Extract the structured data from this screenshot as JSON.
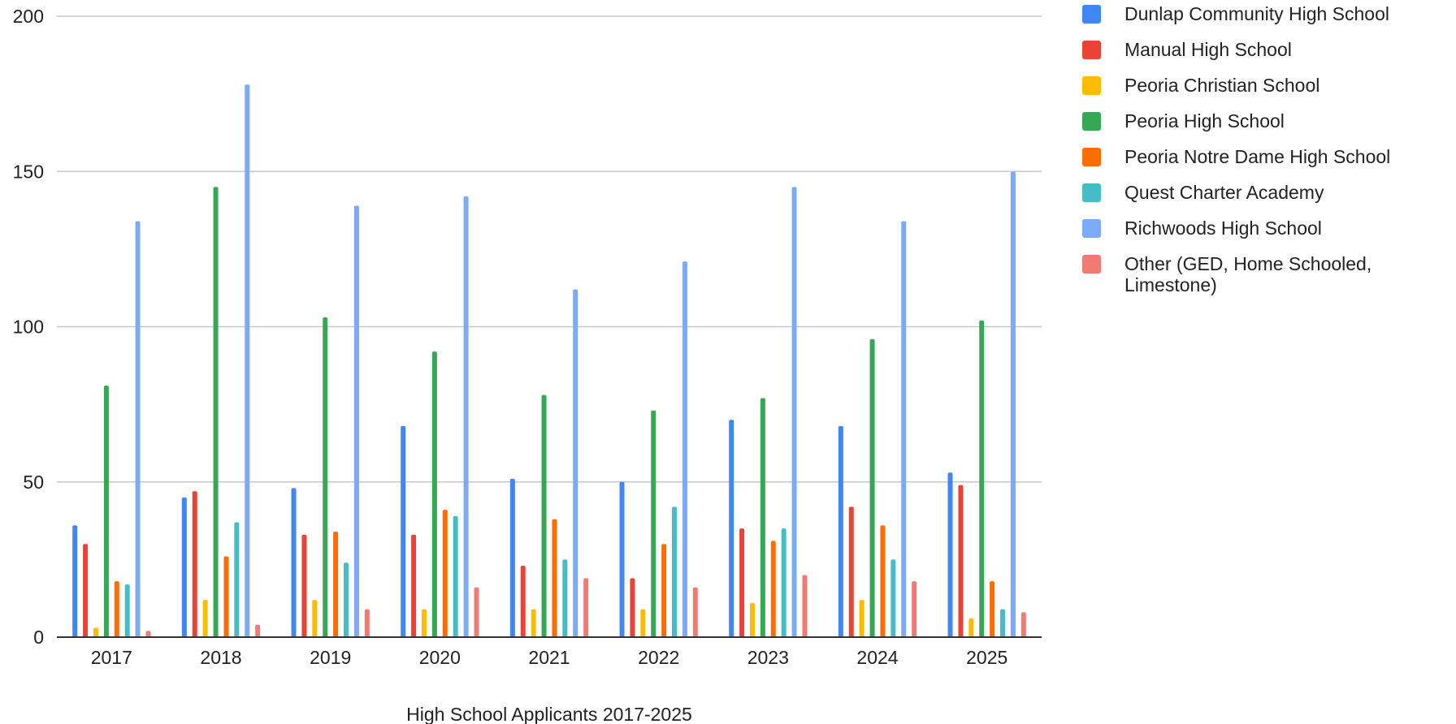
{
  "chart_data": {
    "type": "bar",
    "title": "",
    "xlabel": "High School Applicants 2017-2025",
    "ylabel": "",
    "ylim": [
      0,
      200
    ],
    "yticks": [
      0,
      50,
      100,
      150,
      200
    ],
    "grid": true,
    "legend_position": "right",
    "categories": [
      "2017",
      "2018",
      "2019",
      "2020",
      "2021",
      "2022",
      "2023",
      "2024",
      "2025"
    ],
    "series": [
      {
        "name": "Dunlap Community High School",
        "color": "#4285f4",
        "values": [
          36,
          45,
          48,
          68,
          51,
          50,
          70,
          68,
          53
        ]
      },
      {
        "name": "Manual High School",
        "color": "#ea4335",
        "values": [
          30,
          47,
          33,
          33,
          23,
          19,
          35,
          42,
          49
        ]
      },
      {
        "name": "Peoria Christian School",
        "color": "#fbbc04",
        "values": [
          3,
          12,
          12,
          9,
          9,
          9,
          11,
          12,
          6
        ]
      },
      {
        "name": "Peoria High School",
        "color": "#34a853",
        "values": [
          81,
          145,
          103,
          92,
          78,
          73,
          77,
          96,
          102
        ]
      },
      {
        "name": "Peoria Notre Dame High School",
        "color": "#ff6d01",
        "values": [
          18,
          26,
          34,
          41,
          38,
          30,
          31,
          36,
          18
        ]
      },
      {
        "name": "Quest Charter Academy",
        "color": "#46bdc6",
        "values": [
          17,
          37,
          24,
          39,
          25,
          42,
          35,
          25,
          9
        ]
      },
      {
        "name": "Richwoods High School",
        "color": "#7baaf7",
        "values": [
          134,
          178,
          139,
          142,
          112,
          121,
          145,
          134,
          150
        ]
      },
      {
        "name": "Other (GED, Home Schooled, Limestone)",
        "color": "#f07b72",
        "values": [
          2,
          4,
          9,
          16,
          19,
          16,
          20,
          18,
          8
        ]
      }
    ]
  }
}
